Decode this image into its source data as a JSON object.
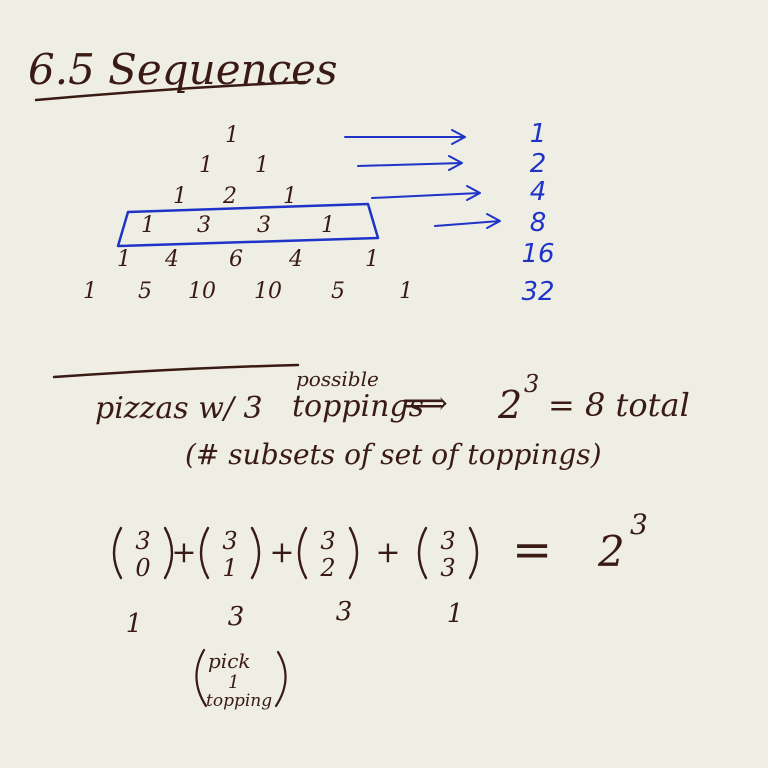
{
  "title": "6.5 Sequences",
  "pascal_rows": [
    [
      "1"
    ],
    [
      "1",
      "1"
    ],
    [
      "1",
      "2",
      "1"
    ],
    [
      "1",
      "3",
      "3",
      "1"
    ],
    [
      "1",
      "4",
      "6",
      "4",
      "1"
    ],
    [
      "1",
      "5",
      "10",
      "10",
      "5",
      "1"
    ]
  ],
  "row_sums": [
    "1",
    "2",
    "4",
    "8",
    "16",
    "32"
  ],
  "pizza_line": {
    "left": "pizzas w/ 3",
    "toppings": "toppings",
    "annotation": "possible",
    "arrow": "⟹",
    "result_base": "2",
    "result_exp": "3",
    "result_rest": "= 8 total"
  },
  "subsets_note": "(# subsets of set of toppings)",
  "binomials": [
    {
      "n": "3",
      "k": "0"
    },
    {
      "n": "3",
      "k": "1"
    },
    {
      "n": "3",
      "k": "2"
    },
    {
      "n": "3",
      "k": "3"
    }
  ],
  "plus": "+",
  "equals": "=",
  "equation_result": {
    "base": "2",
    "exp": "3"
  },
  "binomial_values": [
    "1",
    "3",
    "3",
    "1"
  ],
  "pick_note": [
    "pick",
    "1",
    "topping"
  ],
  "colors": {
    "ink": "#3a1a14",
    "blue": "#1f33c8",
    "paper": "#eeeee4"
  }
}
